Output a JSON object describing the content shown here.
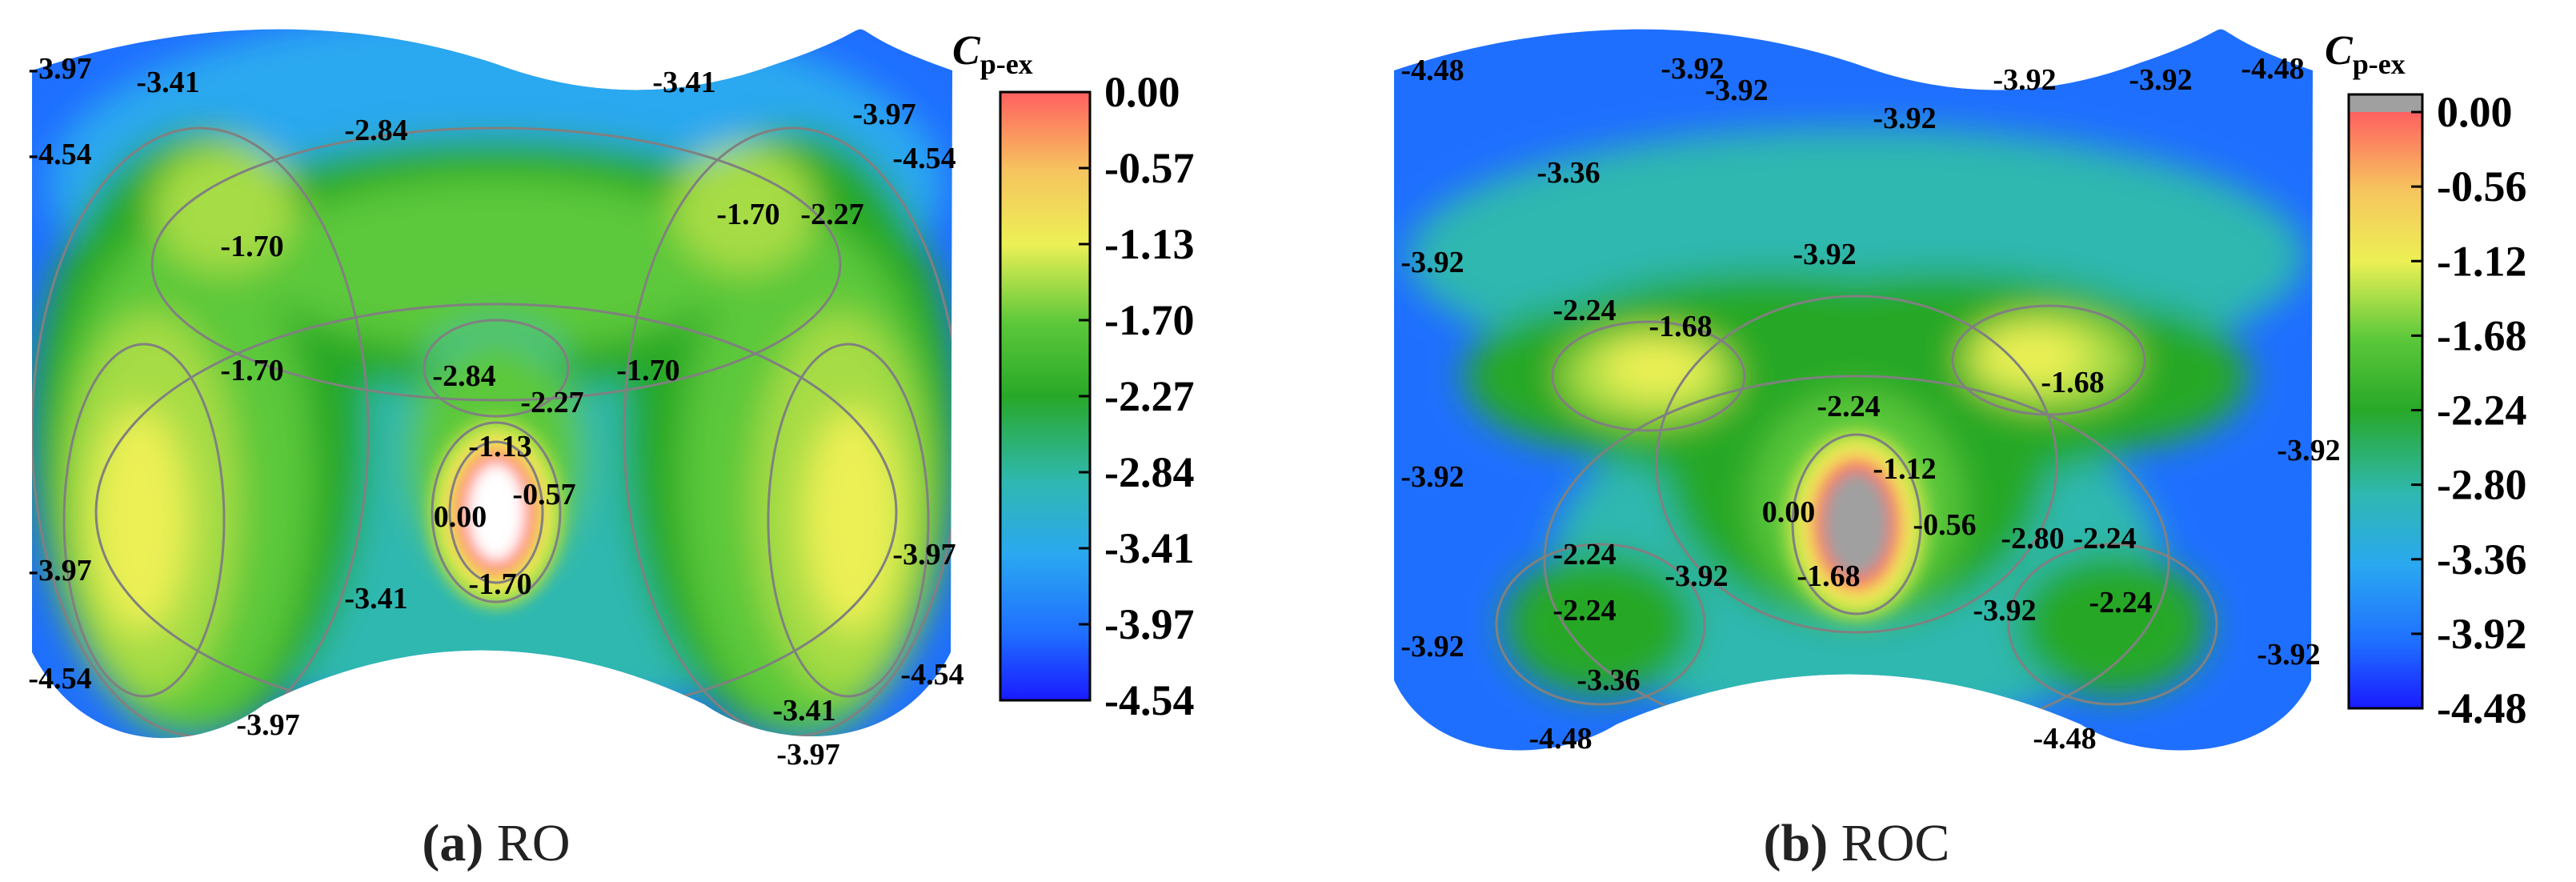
{
  "colors": {
    "scale": [
      "#1a1aff",
      "#1f6fff",
      "#2aa8f0",
      "#2fb8b0",
      "#28a828",
      "#5cc83a",
      "#a6dc44",
      "#ecf055",
      "#f6c45e",
      "#f69070",
      "#ff6060"
    ],
    "contour_line": "#808080",
    "core_ro": "#ffffff",
    "core_roc": "#a0a0a0",
    "cut_out": "#ffffff"
  },
  "chart_data": [
    {
      "type": "heatmap",
      "panel": "a",
      "caption_tag": "(a)",
      "caption_text": "RO",
      "colorbar": {
        "title_main": "C",
        "title_sub": "p-ex",
        "ticks": [
          "0.00",
          "-0.57",
          "-1.13",
          "-1.70",
          "-2.27",
          "-2.84",
          "-3.41",
          "-3.97",
          "-4.54"
        ],
        "range": [
          -4.54,
          0.0
        ]
      },
      "contour_labels": [
        "-3.97",
        "-3.41",
        "-3.41",
        "-3.97",
        "-4.54",
        "-2.84",
        "-4.54",
        "-1.70",
        "-1.70",
        "-2.27",
        "-1.70",
        "-2.84",
        "-2.27",
        "-1.70",
        "-1.13",
        "-0.57",
        "0.00",
        "-1.70",
        "-3.41",
        "-3.97",
        "-3.97",
        "-4.54",
        "-4.54",
        "-3.97",
        "-3.41",
        "-3.97"
      ]
    },
    {
      "type": "heatmap",
      "panel": "b",
      "caption_tag": "(b)",
      "caption_text": "ROC",
      "colorbar": {
        "title_main": "C",
        "title_sub": "p-ex",
        "ticks": [
          "0.00",
          "-0.56",
          "-1.12",
          "-1.68",
          "-2.24",
          "-2.80",
          "-3.36",
          "-3.92",
          "-4.48"
        ],
        "range": [
          -4.48,
          0.0
        ]
      },
      "contour_labels": [
        "-4.48",
        "-3.92",
        "-3.92",
        "-3.92",
        "-3.92",
        "-3.92",
        "-4.48",
        "-3.36",
        "-3.92",
        "-3.92",
        "-2.24",
        "-1.68",
        "-1.68",
        "-2.24",
        "-3.92",
        "-1.12",
        "-3.92",
        "0.00",
        "-0.56",
        "-2.80",
        "-2.24",
        "-2.24",
        "-1.68",
        "-3.92",
        "-2.24",
        "-3.92",
        "-2.24",
        "-3.92",
        "-3.92",
        "-3.36",
        "-4.48",
        "-4.48"
      ]
    }
  ]
}
